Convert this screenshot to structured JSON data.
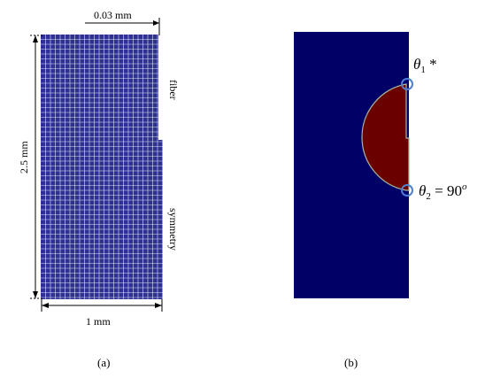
{
  "panel_a": {
    "caption": "(a)",
    "dim_top": "0.03 mm",
    "dim_left": "2.5 mm",
    "dim_bottom": "1 mm",
    "label_fiber": "fiber",
    "label_symmetry": "symmetry",
    "mesh_color": "#2e3192",
    "mesh_line_color": "#dfe3f5"
  },
  "panel_b": {
    "caption": "(b)",
    "theta1_symbol": "θ",
    "theta1_sub": "1",
    "theta1_suffix": " *",
    "theta2_symbol": "θ",
    "theta2_sub": "2",
    "theta2_eq": " = 90",
    "theta2_sup": "o",
    "background_color": "#000066",
    "droplet_color": "#6b0000",
    "marker_color": "#4f7fd0"
  }
}
